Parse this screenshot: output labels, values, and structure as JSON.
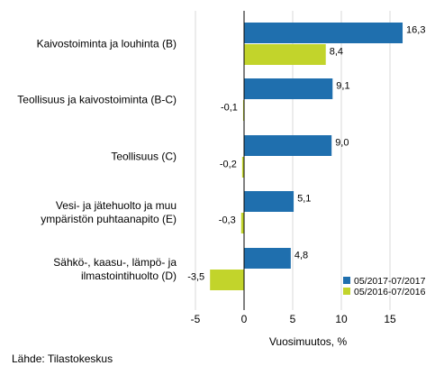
{
  "chart_data": {
    "type": "bar",
    "orientation": "horizontal",
    "title": "",
    "xlabel": "Vuosimuutos, %",
    "ylabel": "",
    "xlim": [
      -6,
      19
    ],
    "xticks": [
      -5,
      0,
      5,
      10,
      15
    ],
    "xtick_labels": [
      "-5",
      "0",
      "5",
      "10",
      "15"
    ],
    "grid": "vertical",
    "legend_position": "bottom-right",
    "categories": [
      [
        "Kaivostoiminta ja louhinta (B)"
      ],
      [
        "Teollisuus ja kaivostoiminta (B-C)"
      ],
      [
        "Teollisuus (C)"
      ],
      [
        "Vesi- ja jätehuolto ja muu",
        "ympäristön puhtaanapito (E)"
      ],
      [
        "Sähkö-, kaasu-, lämpö- ja",
        "ilmastointihuolto (D)"
      ]
    ],
    "series": [
      {
        "name": "05/2017-07/2017",
        "color": "#1f6fae",
        "values": [
          16.3,
          9.1,
          9.0,
          5.1,
          4.8
        ],
        "labels": [
          "16,3",
          "9,1",
          "9,0",
          "5,1",
          "4,8"
        ]
      },
      {
        "name": "05/2016-07/2016",
        "color": "#c2d42b",
        "values": [
          8.4,
          -0.1,
          -0.2,
          -0.3,
          -3.5
        ],
        "labels": [
          "8,4",
          "-0,1",
          "-0,2",
          "-0,3",
          "-3,5"
        ]
      }
    ]
  },
  "source": "Lähde: Tilastokeskus"
}
